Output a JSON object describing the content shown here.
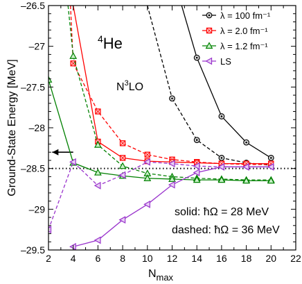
{
  "chart_data": {
    "type": "line",
    "xlabel_main": "N",
    "xlabel_sub": "max",
    "ylabel": "Ground-State Energy [MeV]",
    "xlim": [
      2,
      22
    ],
    "ylim": [
      -29.5,
      -26.5
    ],
    "xticks": [
      2,
      4,
      6,
      8,
      10,
      12,
      14,
      16,
      18,
      20,
      22
    ],
    "yticks": [
      -29.5,
      -29,
      -28.5,
      -28,
      -27.5,
      -27,
      -26.5
    ],
    "xtick_labels": [
      "2",
      "4",
      "6",
      "8",
      "10",
      "12",
      "14",
      "16",
      "18",
      "20",
      "22"
    ],
    "ytick_labels": [
      "–29.5",
      "–29",
      "–28.5",
      "–28",
      "–27.5",
      "–27",
      "–26.5"
    ],
    "reference_line": {
      "y": -28.5,
      "style": "dotted"
    },
    "arrow": {
      "y": -28.3,
      "from_x": 4.0,
      "to_x": 2.3
    },
    "grid": false,
    "legend_position": "top-right",
    "nucleus_base": "He",
    "nucleus_mass": "4",
    "order_base": "N",
    "order_exp": "3",
    "order_tail": "LO",
    "solid_label": "solid: ħΩ = 28 MeV",
    "dashed_label": "dashed: ħΩ = 36 MeV",
    "series": [
      {
        "name": "λ = 100 fm⁻¹",
        "color": "#000000",
        "marker": "circle",
        "solid_x": [
          12,
          14,
          16,
          18,
          20
        ],
        "solid_y": [
          -26.1,
          -27.14,
          -27.86,
          -28.18,
          -28.37
        ],
        "dashed_x": [
          12,
          14,
          16,
          18,
          20
        ],
        "dashed_y": [
          -27.64,
          -28.15,
          -28.37,
          -28.43,
          -28.46
        ],
        "dashed_lead_x": [
          10.0,
          12
        ],
        "dashed_lead_y": [
          -26.5,
          -27.64
        ]
      },
      {
        "name": "λ = 2.0 fm⁻¹",
        "color": "#ff0000",
        "marker": "square",
        "solid_x": [
          4,
          6,
          8,
          10,
          12,
          14,
          16,
          18,
          20
        ],
        "solid_y": [
          -26.5,
          -28.17,
          -28.37,
          -28.41,
          -28.42,
          -28.43,
          -28.44,
          -28.44,
          -28.44
        ],
        "solid_lead_x": [
          3.73,
          4.0
        ],
        "solid_lead_y": [
          -26.5,
          -26.5
        ],
        "dashed_x": [
          4,
          6,
          8,
          10,
          12,
          14,
          16,
          18,
          20
        ],
        "dashed_y": [
          -27.21,
          -27.8,
          -28.19,
          -28.33,
          -28.39,
          -28.42,
          -28.44,
          -28.45,
          -28.45
        ],
        "dashed_lead_x": [
          3.78,
          4
        ],
        "dashed_lead_y": [
          -26.5,
          -27.21
        ]
      },
      {
        "name": "λ = 1.2 fm⁻¹",
        "color": "#008000",
        "marker": "triangle",
        "solid_x": [
          2,
          4,
          6,
          8,
          10,
          12,
          14,
          16,
          18,
          20
        ],
        "solid_y": [
          -27.41,
          -28.43,
          -28.55,
          -28.59,
          -28.62,
          -28.63,
          -28.64,
          -28.64,
          -28.65,
          -28.65
        ],
        "dashed_x": [
          4,
          6,
          8,
          10,
          12,
          14,
          16,
          18,
          20
        ],
        "dashed_y": [
          -27.12,
          -28.21,
          -28.47,
          -28.56,
          -28.6,
          -28.62,
          -28.63,
          -28.64,
          -28.64
        ],
        "dashed_lead_x": [
          3.58,
          4
        ],
        "dashed_lead_y": [
          -26.5,
          -27.12
        ]
      },
      {
        "name": "LS",
        "color": "#9933cc",
        "marker": "left-triangle",
        "solid_x": [
          4,
          6,
          8,
          10,
          12,
          14,
          16,
          18,
          20
        ],
        "solid_y": [
          -29.46,
          -29.38,
          -29.13,
          -28.94,
          -28.7,
          -28.55,
          -28.48,
          -28.48,
          -28.48
        ],
        "dashed_x": [
          2,
          4,
          6,
          8,
          10,
          12,
          14,
          16,
          18,
          20
        ],
        "dashed_y": [
          -29.25,
          -28.42,
          -28.71,
          -28.58,
          -28.42,
          -28.44,
          -28.47,
          -28.48,
          -28.48,
          -28.48
        ]
      }
    ]
  }
}
